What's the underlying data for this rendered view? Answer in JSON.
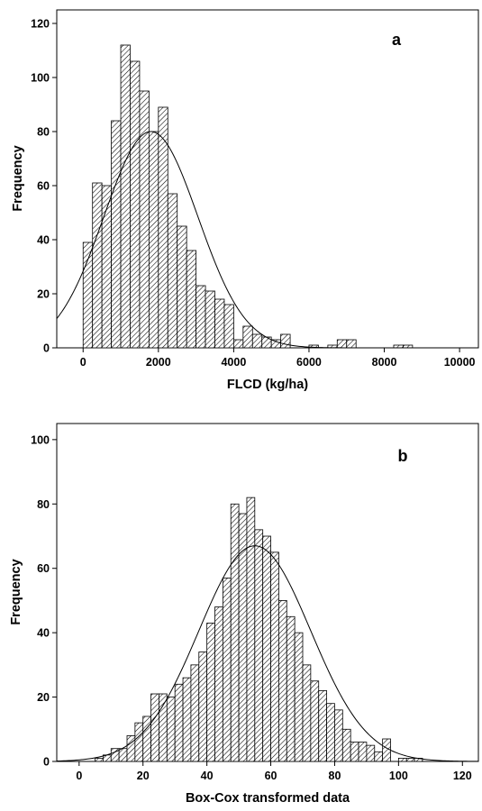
{
  "chart_data": [
    {
      "type": "bar",
      "panel_label": "a",
      "xlabel": "FLCD (kg/ha)",
      "ylabel": "Frequency",
      "xlim": [
        -700,
        10500
      ],
      "ylim": [
        0,
        125
      ],
      "x_ticks": [
        0,
        2000,
        4000,
        6000,
        8000,
        10000
      ],
      "y_ticks": [
        0,
        20,
        40,
        60,
        80,
        100,
        120
      ],
      "bin_width": 250,
      "bin_starts": [
        0,
        250,
        500,
        750,
        1000,
        1250,
        1500,
        1750,
        2000,
        2250,
        2500,
        2750,
        3000,
        3250,
        3500,
        3750,
        4000,
        4250,
        4500,
        4750,
        5000,
        5250,
        5500,
        5750,
        6000,
        6250,
        6500,
        6750,
        7000,
        7250,
        7500,
        7750,
        8000,
        8250,
        8500,
        8750
      ],
      "values": [
        39,
        61,
        60,
        84,
        112,
        106,
        95,
        80,
        89,
        57,
        45,
        36,
        23,
        21,
        18,
        16,
        3,
        8,
        5,
        4,
        3,
        5,
        0,
        0,
        1,
        0,
        1,
        3,
        3,
        0,
        0,
        0,
        0,
        1,
        1,
        0
      ],
      "normal_fit": {
        "mean": 1800,
        "sd": 1250,
        "peak": 80
      },
      "bar_fill": "hatched",
      "grid": false
    },
    {
      "type": "bar",
      "panel_label": "b",
      "xlabel": "Box-Cox transformed data",
      "ylabel": "Frequency",
      "xlim": [
        -7,
        125
      ],
      "ylim": [
        0,
        105
      ],
      "x_ticks": [
        0,
        20,
        40,
        60,
        80,
        100,
        120
      ],
      "y_ticks": [
        0,
        20,
        40,
        60,
        80,
        100
      ],
      "bin_width": 2.5,
      "bin_starts": [
        2.5,
        5,
        7.5,
        10,
        12.5,
        15,
        17.5,
        20,
        22.5,
        25,
        27.5,
        30,
        32.5,
        35,
        37.5,
        40,
        42.5,
        45,
        47.5,
        50,
        52.5,
        55,
        57.5,
        60,
        62.5,
        65,
        67.5,
        70,
        72.5,
        75,
        77.5,
        80,
        82.5,
        85,
        87.5,
        90,
        92.5,
        95,
        97.5,
        100,
        102.5,
        105,
        107.5
      ],
      "values": [
        0,
        1,
        2,
        4,
        4,
        8,
        12,
        14,
        21,
        21,
        20,
        24,
        26,
        30,
        34,
        43,
        48,
        57,
        80,
        77,
        82,
        72,
        70,
        65,
        50,
        45,
        40,
        30,
        25,
        22,
        18,
        16,
        10,
        6,
        6,
        5,
        3,
        7,
        0,
        1,
        1,
        1,
        0
      ],
      "normal_fit": {
        "mean": 55,
        "sd": 17.5,
        "peak": 67
      },
      "bar_fill": "hatched",
      "grid": false
    }
  ]
}
